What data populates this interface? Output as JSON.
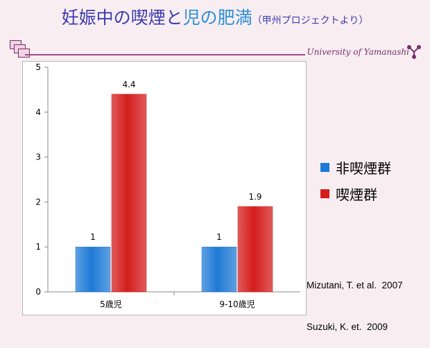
{
  "header": {
    "title_part1": "妊娠中の喫煙",
    "title_part2": "と",
    "title_part3": "児の肥満",
    "title_sub": "（甲州プロジェクトより）",
    "university": "University of Yamanashi"
  },
  "chart_data": {
    "type": "bar",
    "categories": [
      "5歳児",
      "9-10歳児"
    ],
    "series": [
      {
        "name": "非喫煙群",
        "values": [
          1,
          1
        ],
        "color": "#1f7ad6"
      },
      {
        "name": "喫煙群",
        "values": [
          4.4,
          1.9
        ],
        "color": "#d41c1c"
      }
    ],
    "data_labels": [
      [
        "1",
        "1"
      ],
      [
        "4.4",
        "1.9"
      ]
    ],
    "yticks": [
      0,
      1,
      2,
      3,
      4,
      5
    ],
    "ylim": [
      0,
      5
    ],
    "grid": false,
    "legend_position": "right"
  },
  "references": [
    "Mizutani, T. et al.  2007",
    "Suzuki, K. et.  2009"
  ],
  "colors": {
    "title": "#3b3bb0",
    "title_accent": "#2a8ed8",
    "brand": "#7a2e6a"
  }
}
